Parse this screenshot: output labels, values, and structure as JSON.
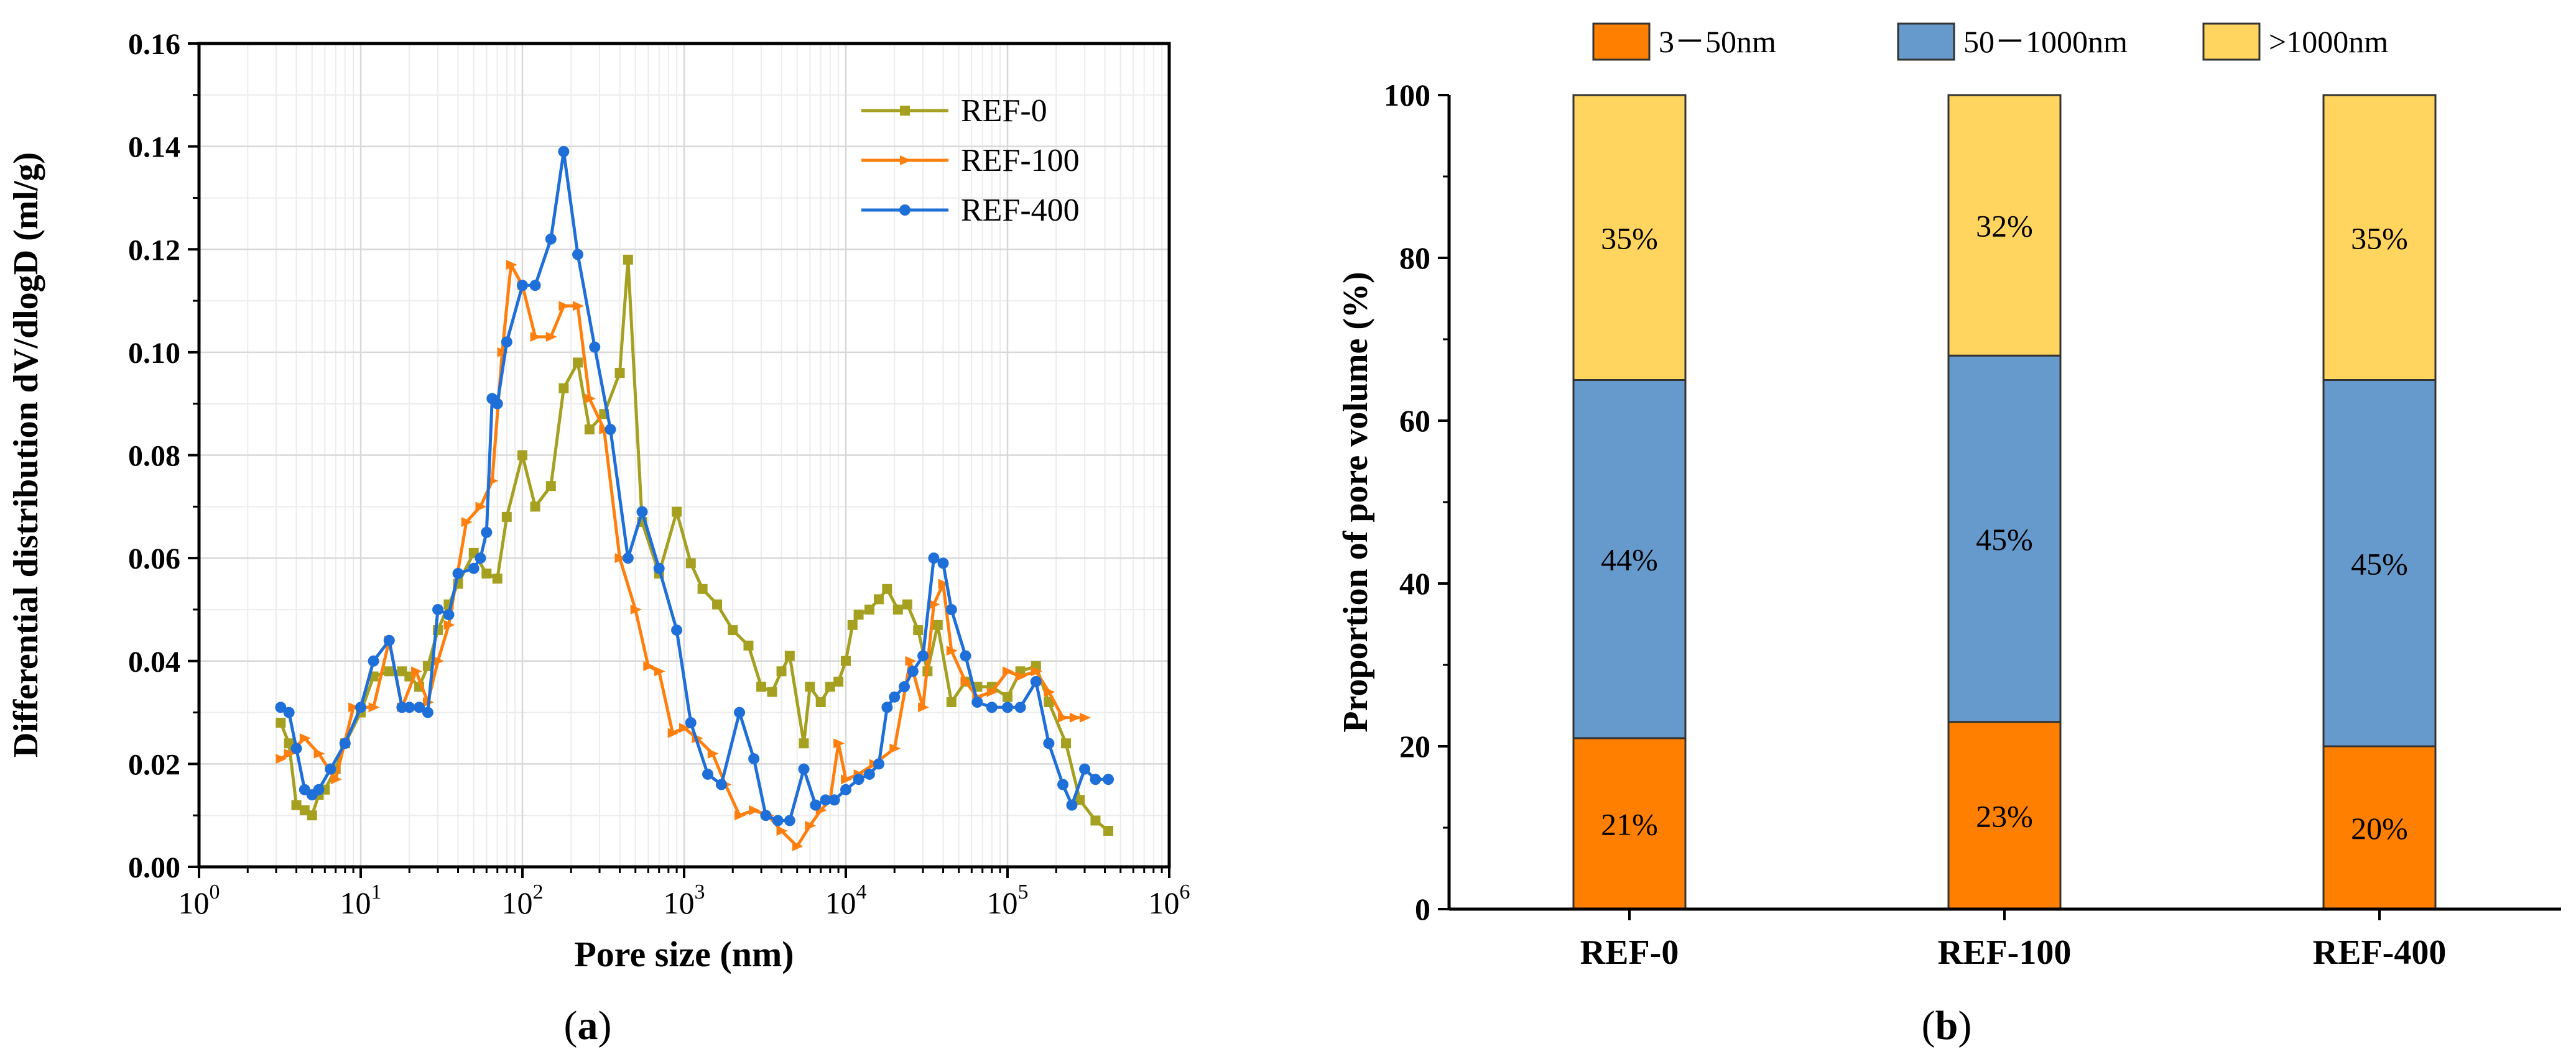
{
  "chart_data": [
    {
      "type": "line",
      "panel_label": "(a)",
      "panel_letter": "a",
      "title": "",
      "xlabel": "Pore size (nm)",
      "ylabel": "Differential distribution dV/dlogD (ml/g)",
      "xscale": "log",
      "xlim": [
        1,
        1000000
      ],
      "ylim": [
        0,
        0.16
      ],
      "xticks": [
        {
          "base": "10",
          "exp": "0"
        },
        {
          "base": "10",
          "exp": "1"
        },
        {
          "base": "10",
          "exp": "2"
        },
        {
          "base": "10",
          "exp": "3"
        },
        {
          "base": "10",
          "exp": "4"
        },
        {
          "base": "10",
          "exp": "5"
        },
        {
          "base": "10",
          "exp": "6"
        }
      ],
      "yticks": [
        "0.00",
        "0.02",
        "0.04",
        "0.06",
        "0.08",
        "0.10",
        "0.12",
        "0.14",
        "0.16"
      ],
      "grid": true,
      "legend_position": "top-right",
      "series": [
        {
          "name": "REF-0",
          "color": "#a5a020",
          "marker": "square",
          "x": [
            3.2,
            3.6,
            4.0,
            4.5,
            5.0,
            5.5,
            6.0,
            7.0,
            8.0,
            10,
            12,
            15,
            18,
            20,
            23,
            26,
            30,
            35,
            40,
            50,
            60,
            70,
            80,
            100,
            120,
            150,
            180,
            220,
            260,
            320,
            400,
            450,
            550,
            700,
            900,
            1100,
            1300,
            1600,
            2000,
            2500,
            3000,
            3500,
            4000,
            4500,
            5500,
            6000,
            7000,
            8000,
            9000,
            10000,
            11000,
            12000,
            14000,
            16000,
            18000,
            21000,
            24000,
            28000,
            32000,
            37000,
            45000,
            55000,
            65000,
            80000,
            100000,
            120000,
            150000,
            180000,
            230000,
            280000,
            350000,
            420000
          ],
          "y": [
            0.028,
            0.024,
            0.012,
            0.011,
            0.01,
            0.014,
            0.015,
            0.019,
            0.024,
            0.03,
            0.037,
            0.038,
            0.038,
            0.037,
            0.035,
            0.039,
            0.046,
            0.051,
            0.055,
            0.061,
            0.057,
            0.056,
            0.068,
            0.08,
            0.07,
            0.074,
            0.093,
            0.098,
            0.085,
            0.088,
            0.096,
            0.118,
            0.067,
            0.057,
            0.069,
            0.059,
            0.054,
            0.051,
            0.046,
            0.043,
            0.035,
            0.034,
            0.038,
            0.041,
            0.024,
            0.035,
            0.032,
            0.035,
            0.036,
            0.04,
            0.047,
            0.049,
            0.05,
            0.052,
            0.054,
            0.05,
            0.051,
            0.046,
            0.038,
            0.047,
            0.032,
            0.036,
            0.035,
            0.035,
            0.033,
            0.038,
            0.039,
            0.032,
            0.024,
            0.013,
            0.009,
            0.007
          ]
        },
        {
          "name": "REF-100",
          "color": "#ff7f0e",
          "marker": "triangle-right",
          "x": [
            3.2,
            3.6,
            4.5,
            5.5,
            7.0,
            9.0,
            12,
            15,
            18,
            22,
            26,
            30,
            35,
            45,
            55,
            65,
            75,
            85,
            100,
            120,
            150,
            180,
            220,
            260,
            320,
            400,
            500,
            600,
            700,
            850,
            1000,
            1200,
            1500,
            1800,
            2200,
            2700,
            3300,
            4000,
            5000,
            6000,
            7000,
            8000,
            9000,
            10000,
            12000,
            15000,
            20000,
            25000,
            30000,
            35000,
            40000,
            45000,
            55000,
            65000,
            80000,
            100000,
            120000,
            150000,
            180000,
            220000,
            260000,
            300000
          ],
          "y": [
            0.021,
            0.022,
            0.025,
            0.022,
            0.017,
            0.031,
            0.031,
            0.044,
            0.031,
            0.038,
            0.032,
            0.04,
            0.047,
            0.067,
            0.07,
            0.075,
            0.1,
            0.117,
            0.113,
            0.103,
            0.103,
            0.109,
            0.109,
            0.091,
            0.085,
            0.06,
            0.05,
            0.039,
            0.038,
            0.026,
            0.027,
            0.025,
            0.022,
            0.016,
            0.01,
            0.011,
            0.01,
            0.007,
            0.004,
            0.008,
            0.011,
            0.013,
            0.024,
            0.017,
            0.018,
            0.02,
            0.023,
            0.04,
            0.031,
            0.051,
            0.055,
            0.042,
            0.036,
            0.033,
            0.034,
            0.038,
            0.037,
            0.038,
            0.034,
            0.029,
            0.029,
            0.029
          ]
        },
        {
          "name": "REF-400",
          "color": "#1f6fd8",
          "marker": "circle",
          "x": [
            3.2,
            3.6,
            4.0,
            4.5,
            5.0,
            5.5,
            6.5,
            8.0,
            10,
            12,
            15,
            18,
            20,
            23,
            26,
            30,
            35,
            40,
            50,
            55,
            60,
            65,
            70,
            80,
            100,
            120,
            150,
            180,
            220,
            280,
            350,
            450,
            550,
            700,
            900,
            1100,
            1400,
            1700,
            2200,
            2700,
            3200,
            3800,
            4500,
            5500,
            6500,
            7500,
            8500,
            10000,
            12000,
            14000,
            16000,
            18000,
            20000,
            23000,
            26000,
            30000,
            35000,
            40000,
            45000,
            55000,
            65000,
            80000,
            100000,
            120000,
            150000,
            180000,
            220000,
            250000,
            300000,
            350000,
            420000
          ],
          "y": [
            0.031,
            0.03,
            0.023,
            0.015,
            0.014,
            0.015,
            0.019,
            0.024,
            0.031,
            0.04,
            0.044,
            0.031,
            0.031,
            0.031,
            0.03,
            0.05,
            0.049,
            0.057,
            0.058,
            0.06,
            0.065,
            0.091,
            0.09,
            0.102,
            0.113,
            0.113,
            0.122,
            0.139,
            0.119,
            0.101,
            0.085,
            0.06,
            0.069,
            0.058,
            0.046,
            0.028,
            0.018,
            0.016,
            0.03,
            0.021,
            0.01,
            0.009,
            0.009,
            0.019,
            0.012,
            0.013,
            0.013,
            0.015,
            0.017,
            0.018,
            0.02,
            0.031,
            0.033,
            0.035,
            0.038,
            0.041,
            0.06,
            0.059,
            0.05,
            0.041,
            0.032,
            0.031,
            0.031,
            0.031,
            0.036,
            0.024,
            0.016,
            0.012,
            0.019,
            0.017,
            0.017
          ]
        }
      ]
    },
    {
      "type": "bar",
      "stacked": true,
      "panel_label": "(b)",
      "panel_letter": "b",
      "title": "",
      "xlabel": "",
      "ylabel": "Proportion of pore volume (%)",
      "ylim": [
        0,
        100
      ],
      "yticks": [
        "0",
        "20",
        "40",
        "60",
        "80",
        "100"
      ],
      "categories": [
        "REF-0",
        "REF-100",
        "REF-400"
      ],
      "legend_position": "top",
      "series": [
        {
          "name": "3－50nm",
          "color": "#ff7f00",
          "values": [
            21,
            23,
            20
          ],
          "labels": [
            "21%",
            "23%",
            "20%"
          ]
        },
        {
          "name": "50－1000nm",
          "color": "#6699cc",
          "values": [
            44,
            45,
            45
          ],
          "labels": [
            "44%",
            "45%",
            "45%"
          ]
        },
        {
          "name": ">1000nm",
          "color": "#ffd55f",
          "values": [
            35,
            32,
            35
          ],
          "labels": [
            "35%",
            "32%",
            "35%"
          ]
        }
      ]
    }
  ]
}
